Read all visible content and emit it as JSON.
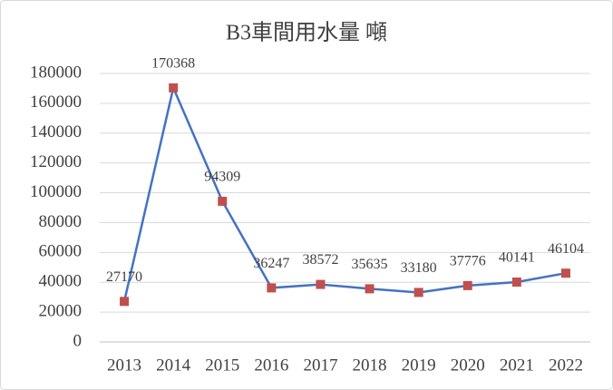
{
  "chart_data": {
    "type": "line",
    "title": "B3車間用水量 噸",
    "categories": [
      "2013",
      "2014",
      "2015",
      "2016",
      "2017",
      "2018",
      "2019",
      "2020",
      "2021",
      "2022"
    ],
    "series": [
      {
        "name": "B3車間用水量",
        "color": "#4472c4",
        "marker_color": "#c0504d",
        "values": [
          27170,
          170368,
          94309,
          36247,
          38572,
          35635,
          33180,
          37776,
          40141,
          46104
        ]
      }
    ],
    "ylim": [
      0,
      180000
    ],
    "yticks": [
      0,
      20000,
      40000,
      60000,
      80000,
      100000,
      120000,
      140000,
      160000,
      180000
    ],
    "grid": true
  }
}
